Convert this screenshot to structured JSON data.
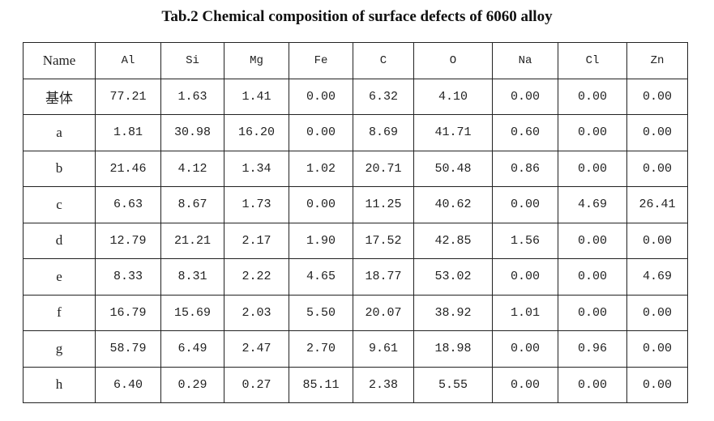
{
  "caption": "Tab.2 Chemical composition of surface defects of 6060 alloy",
  "table": {
    "headers": [
      "Name",
      "Al",
      "Si",
      "Mg",
      "Fe",
      "C",
      "O",
      "Na",
      "Cl",
      "Zn"
    ],
    "rows": [
      [
        "基体",
        "77.21",
        "1.63",
        "1.41",
        "0.00",
        "6.32",
        "4.10",
        "0.00",
        "0.00",
        "0.00"
      ],
      [
        "a",
        "1.81",
        "30.98",
        "16.20",
        "0.00",
        "8.69",
        "41.71",
        "0.60",
        "0.00",
        "0.00"
      ],
      [
        "b",
        "21.46",
        "4.12",
        "1.34",
        "1.02",
        "20.71",
        "50.48",
        "0.86",
        "0.00",
        "0.00"
      ],
      [
        "c",
        "6.63",
        "8.67",
        "1.73",
        "0.00",
        "11.25",
        "40.62",
        "0.00",
        "4.69",
        "26.41"
      ],
      [
        "d",
        "12.79",
        "21.21",
        "2.17",
        "1.90",
        "17.52",
        "42.85",
        "1.56",
        "0.00",
        "0.00"
      ],
      [
        "e",
        "8.33",
        "8.31",
        "2.22",
        "4.65",
        "18.77",
        "53.02",
        "0.00",
        "0.00",
        "4.69"
      ],
      [
        "f",
        "16.79",
        "15.69",
        "2.03",
        "5.50",
        "20.07",
        "38.92",
        "1.01",
        "0.00",
        "0.00"
      ],
      [
        "g",
        "58.79",
        "6.49",
        "2.47",
        "2.70",
        "9.61",
        "18.98",
        "0.00",
        "0.96",
        "0.00"
      ],
      [
        "h",
        "6.40",
        "0.29",
        "0.27",
        "85.11",
        "2.38",
        "5.55",
        "0.00",
        "0.00",
        "0.00"
      ]
    ]
  }
}
